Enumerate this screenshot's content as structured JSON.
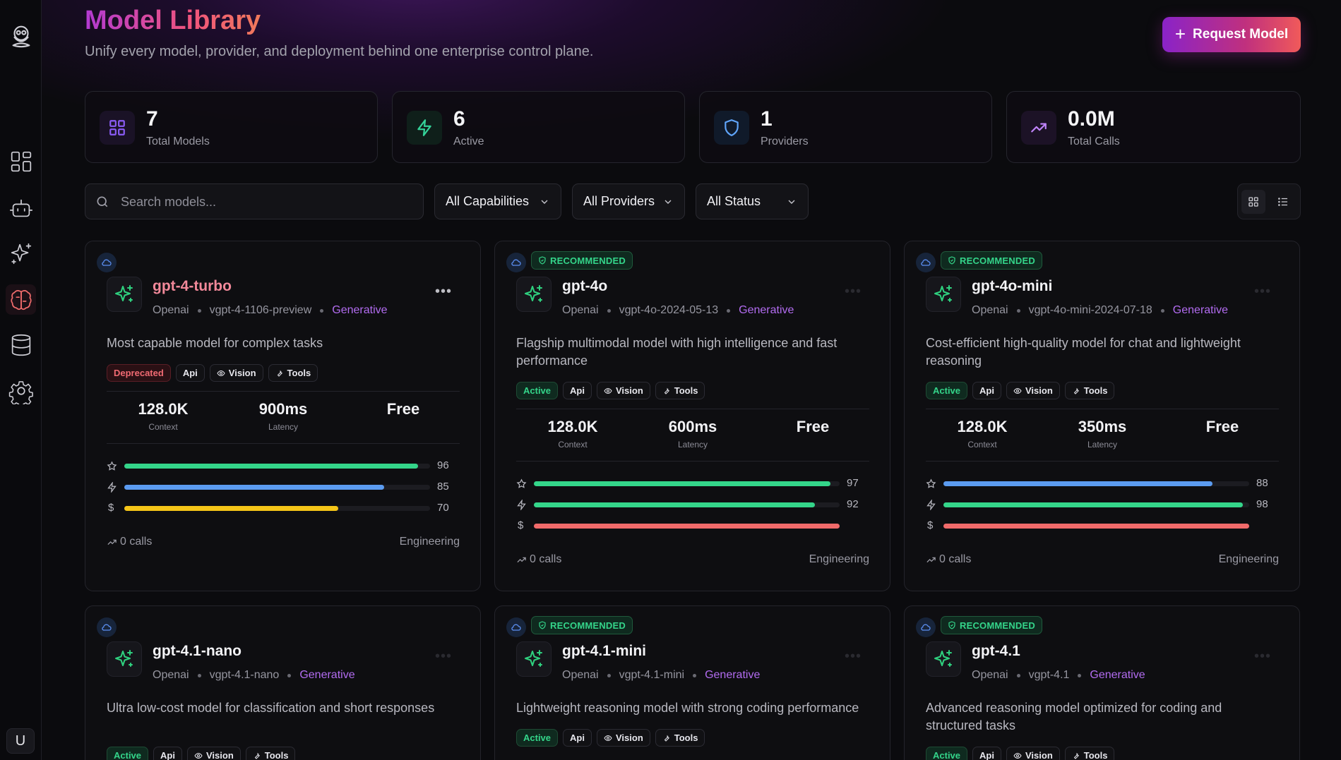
{
  "sidebar": {
    "items": [
      {
        "icon": "dashboard-icon"
      },
      {
        "icon": "bot-icon"
      },
      {
        "icon": "sparkles-icon"
      },
      {
        "icon": "brain-icon",
        "active": true
      },
      {
        "icon": "database-icon"
      },
      {
        "icon": "settings-icon"
      }
    ],
    "avatar": "U"
  },
  "header": {
    "title": "Model Library",
    "subtitle": "Unify every model, provider, and deployment behind one enterprise control plane.",
    "request_label": "Request Model"
  },
  "stats": [
    {
      "value": "7",
      "label": "Total Models",
      "icon": "grid-icon",
      "color": "#8b5cf6"
    },
    {
      "value": "6",
      "label": "Active",
      "icon": "zap-icon",
      "color": "#34d399"
    },
    {
      "value": "1",
      "label": "Providers",
      "icon": "shield-icon",
      "color": "#60a5fa"
    },
    {
      "value": "0.0M",
      "label": "Total Calls",
      "icon": "trending-up-icon",
      "color": "#c084fc"
    }
  ],
  "filters": {
    "search_placeholder": "Search models...",
    "capabilities": "All Capabilities",
    "providers": "All Providers",
    "status": "All Status"
  },
  "cards": [
    {
      "name": "gpt-4-turbo",
      "recommended": false,
      "provider": "Openai",
      "version": "vgpt-4-1106-preview",
      "category": "Generative",
      "description": "Most capable model for complex tasks",
      "tags": [
        "Deprecated",
        "Api",
        "Vision",
        "Tools"
      ],
      "context": "128.0K",
      "context_label": "Context",
      "latency": "900ms",
      "latency_label": "Latency",
      "price": "Free",
      "scores": {
        "quality": 96,
        "speed": 85,
        "cost": 70
      },
      "calls": "0 calls",
      "team": "Engineering"
    },
    {
      "name": "gpt-4o",
      "recommended": true,
      "badge": "RECOMMENDED",
      "provider": "Openai",
      "version": "vgpt-4o-2024-05-13",
      "category": "Generative",
      "description": "Flagship multimodal model with high intelligence and fast performance",
      "tags": [
        "Active",
        "Api",
        "Vision",
        "Tools"
      ],
      "context": "128.0K",
      "context_label": "Context",
      "latency": "600ms",
      "latency_label": "Latency",
      "price": "Free",
      "scores": {
        "quality": 97,
        "speed": 92,
        "cost": 100
      },
      "calls": "0 calls",
      "team": "Engineering"
    },
    {
      "name": "gpt-4o-mini",
      "recommended": true,
      "badge": "RECOMMENDED",
      "provider": "Openai",
      "version": "vgpt-4o-mini-2024-07-18",
      "category": "Generative",
      "description": "Cost-efficient high-quality model for chat and lightweight reasoning",
      "tags": [
        "Active",
        "Api",
        "Vision",
        "Tools"
      ],
      "context": "128.0K",
      "context_label": "Context",
      "latency": "350ms",
      "latency_label": "Latency",
      "price": "Free",
      "scores": {
        "quality": 88,
        "speed": 98,
        "cost": 100
      },
      "calls": "0 calls",
      "team": "Engineering"
    },
    {
      "name": "gpt-4.1-nano",
      "recommended": false,
      "provider": "Openai",
      "version": "vgpt-4.1-nano",
      "category": "Generative",
      "description": "Ultra low-cost model for classification and short responses",
      "tags": [
        "Active",
        "Api",
        "Vision",
        "Tools"
      ]
    },
    {
      "name": "gpt-4.1-mini",
      "recommended": true,
      "badge": "RECOMMENDED",
      "provider": "Openai",
      "version": "vgpt-4.1-mini",
      "category": "Generative",
      "description": "Lightweight reasoning model with strong coding performance",
      "tags": [
        "Active",
        "Api",
        "Vision",
        "Tools"
      ]
    },
    {
      "name": "gpt-4.1",
      "recommended": true,
      "badge": "RECOMMENDED",
      "provider": "Openai",
      "version": "vgpt-4.1",
      "category": "Generative",
      "description": "Advanced reasoning model optimized for coding and structured tasks",
      "tags": [
        "Active",
        "Api",
        "Vision",
        "Tools"
      ]
    }
  ]
}
